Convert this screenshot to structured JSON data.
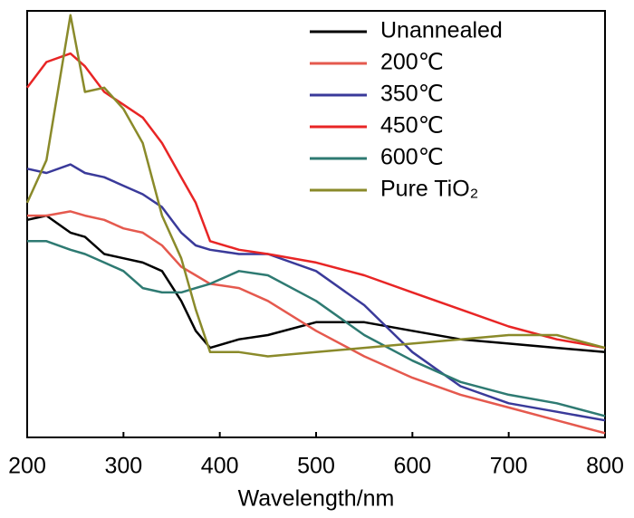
{
  "chart_data": {
    "type": "line",
    "x_label": "Wavelength/nm",
    "x": [
      200,
      220,
      245,
      260,
      280,
      300,
      320,
      340,
      360,
      375,
      390,
      420,
      450,
      500,
      550,
      600,
      650,
      700,
      750,
      800
    ],
    "xlim": [
      200,
      800
    ],
    "xticks": [
      200,
      300,
      400,
      500,
      600,
      700,
      800
    ],
    "ylim": [
      0,
      100
    ],
    "legend": "upper right",
    "series": [
      {
        "name": "Unannealed",
        "color": "#000000",
        "values": [
          51,
          52,
          48,
          47,
          43,
          42,
          41,
          39,
          32,
          25,
          21,
          23,
          24,
          27,
          27,
          25,
          23,
          22,
          21,
          20
        ]
      },
      {
        "name": "200℃",
        "color": "#e5594e",
        "values": [
          52,
          52,
          53,
          52,
          51,
          49,
          48,
          45,
          40,
          38,
          36,
          35,
          32,
          25,
          19,
          14,
          10,
          7,
          4,
          1
        ]
      },
      {
        "name": "350℃",
        "color": "#3a3a9a",
        "values": [
          63,
          62,
          64,
          62,
          61,
          59,
          57,
          54,
          48,
          45,
          44,
          43,
          43,
          39,
          31,
          20,
          12,
          8,
          6,
          4
        ]
      },
      {
        "name": "450℃",
        "color": "#e82525",
        "values": [
          82,
          88,
          90,
          87,
          81,
          78,
          75,
          69,
          61,
          55,
          46,
          44,
          43,
          41,
          38,
          34,
          30,
          26,
          23,
          21
        ]
      },
      {
        "name": "600℃",
        "color": "#2e7a72",
        "values": [
          46,
          46,
          44,
          43,
          41,
          39,
          35,
          34,
          34,
          35,
          36,
          39,
          38,
          32,
          24,
          18,
          13,
          10,
          8,
          5
        ]
      },
      {
        "name": "Pure TiO₂",
        "color": "#8a8a2a",
        "values": [
          55,
          65,
          99,
          81,
          82,
          77,
          69,
          52,
          42,
          30,
          20,
          20,
          19,
          20,
          21,
          22,
          23,
          24,
          24,
          21
        ]
      }
    ]
  }
}
